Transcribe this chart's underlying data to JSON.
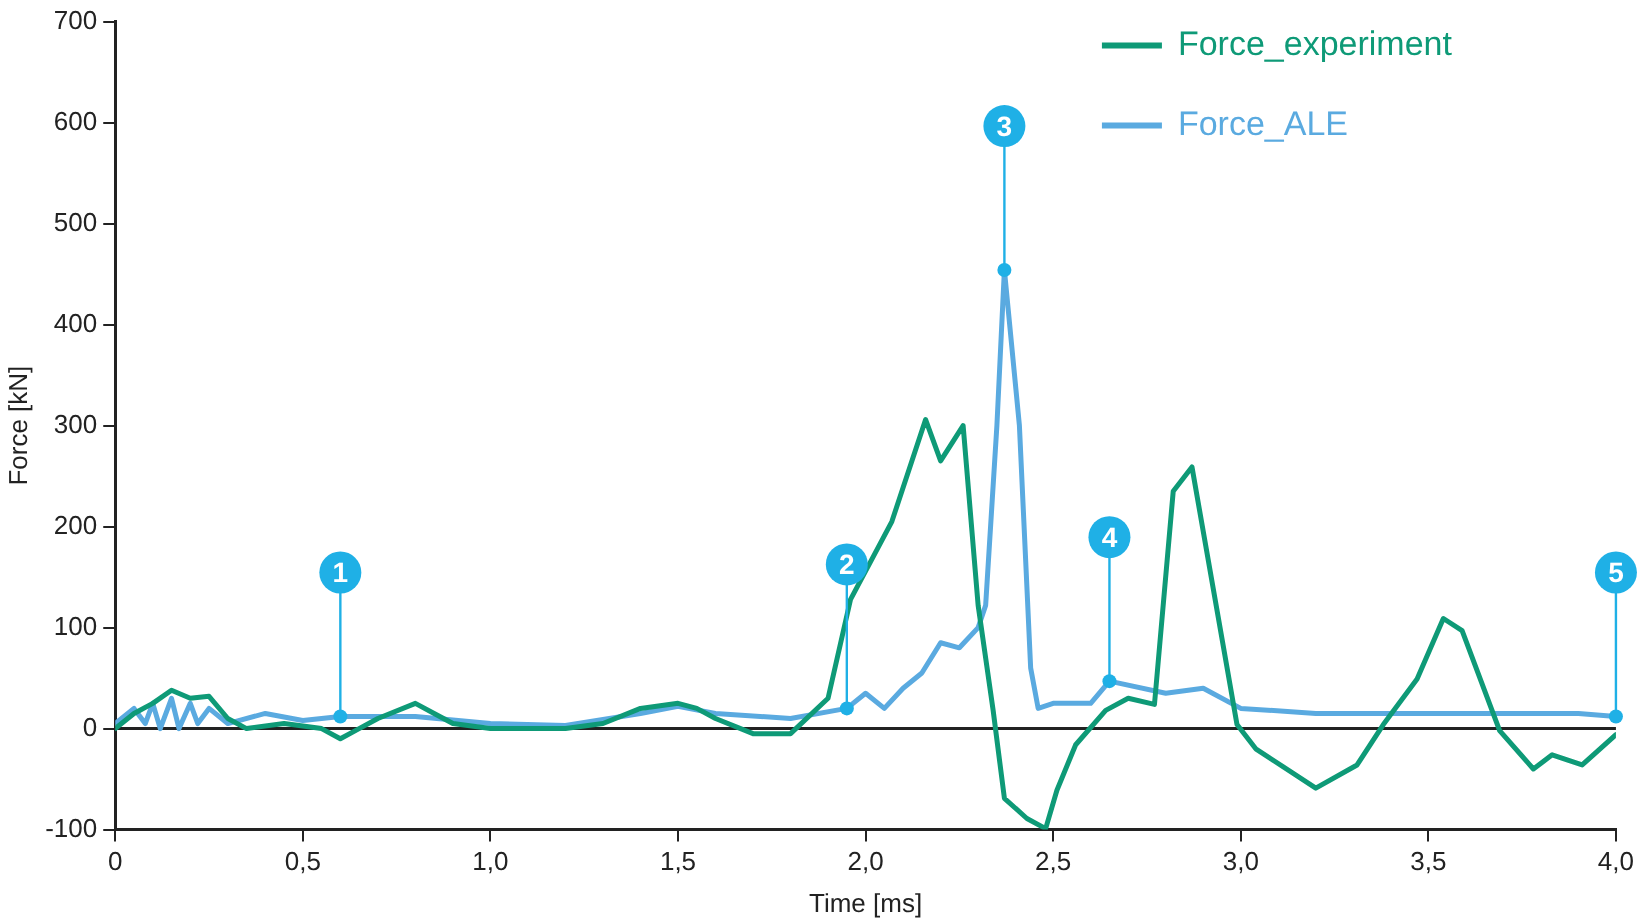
{
  "chart_data": {
    "type": "line",
    "xlabel": "Time [ms]",
    "ylabel": "Force [kN]",
    "xlim": [
      0,
      4
    ],
    "xticks": [
      0,
      {
        "value": 0.5,
        "label": "0,5"
      },
      {
        "value": 1,
        "label": "1,0"
      },
      {
        "value": 1.5,
        "label": "1,5"
      },
      {
        "value": 2,
        "label": "2,0"
      },
      {
        "value": 2.5,
        "label": "2,5"
      },
      {
        "value": 3,
        "label": "3,0"
      },
      {
        "value": 3.5,
        "label": "3,5"
      },
      {
        "value": 4,
        "label": "4,0"
      }
    ],
    "ylim": [
      -100,
      700
    ],
    "yticks": [
      -100,
      0,
      100,
      200,
      300,
      400,
      500,
      600,
      700
    ],
    "grid": false,
    "legend": "top right",
    "marker": "none",
    "line_style": "solid",
    "ref_lines": [
      {
        "axis": "y",
        "value": 0,
        "color": "#222222"
      }
    ],
    "series": [
      {
        "name": "Force_experiment",
        "color": "#0e9a77",
        "x": [
          0,
          0.05,
          0.1,
          0.15,
          0.2,
          0.25,
          0.3,
          0.35,
          0.45,
          0.55,
          0.6,
          0.65,
          0.7,
          0.8,
          0.85,
          0.9,
          1.0,
          1.1,
          1.2,
          1.3,
          1.4,
          1.5,
          1.55,
          1.6,
          1.7,
          1.8,
          1.9,
          1.96,
          2.07,
          2.16,
          2.2,
          2.26,
          2.3,
          2.34,
          2.37,
          2.43,
          2.48,
          2.51,
          2.56,
          2.64,
          2.7,
          2.77,
          2.82,
          2.87,
          2.99,
          3.04,
          3.2,
          3.31,
          3.38,
          3.47,
          3.54,
          3.59,
          3.69,
          3.78,
          3.83,
          3.91,
          4.0
        ],
        "values": [
          0,
          15,
          25,
          38,
          30,
          32,
          10,
          0,
          5,
          0,
          -10,
          0,
          10,
          25,
          15,
          5,
          0,
          0,
          0,
          5,
          20,
          25,
          20,
          10,
          -5,
          -5,
          30,
          128,
          205,
          306,
          265,
          300,
          122,
          18,
          -69,
          -89,
          -99,
          -61,
          -16,
          18,
          30,
          24,
          235,
          259,
          4,
          -20,
          -59,
          -36,
          4,
          49,
          109,
          97,
          -2,
          -40,
          -26,
          -36,
          -6
        ]
      },
      {
        "name": "Force_ALE",
        "color": "#5aaae0",
        "x": [
          0,
          0.05,
          0.08,
          0.1,
          0.12,
          0.15,
          0.17,
          0.2,
          0.22,
          0.25,
          0.3,
          0.4,
          0.5,
          0.6,
          0.8,
          1.0,
          1.2,
          1.4,
          1.5,
          1.6,
          1.8,
          1.95,
          2.0,
          2.05,
          2.1,
          2.15,
          2.2,
          2.25,
          2.3,
          2.32,
          2.35,
          2.37,
          2.41,
          2.44,
          2.46,
          2.5,
          2.6,
          2.65,
          2.8,
          2.9,
          3.0,
          3.2,
          3.5,
          3.7,
          3.9,
          4.0
        ],
        "values": [
          5,
          20,
          5,
          25,
          0,
          30,
          0,
          25,
          5,
          20,
          5,
          15,
          8,
          12,
          12,
          5,
          3,
          15,
          22,
          15,
          10,
          20,
          35,
          20,
          40,
          55,
          85,
          80,
          100,
          122,
          300,
          454,
          300,
          60,
          20,
          25,
          25,
          47,
          35,
          40,
          20,
          15,
          15,
          15,
          15,
          12
        ]
      }
    ],
    "annotations": [
      {
        "text": "1",
        "x": 0.6,
        "y": 12
      },
      {
        "text": "2",
        "x": 1.95,
        "y": 20
      },
      {
        "text": "3",
        "x": 2.37,
        "y": 454
      },
      {
        "text": "4",
        "x": 2.65,
        "y": 47
      },
      {
        "text": "5",
        "x": 4.0,
        "y": 12
      }
    ]
  }
}
